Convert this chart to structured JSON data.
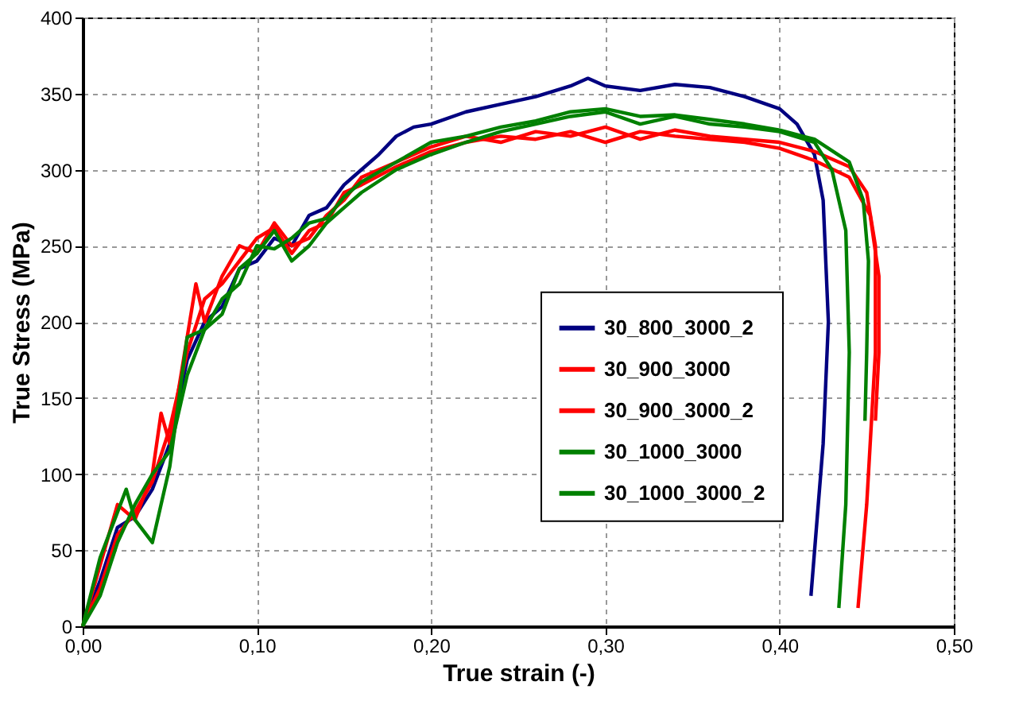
{
  "chart_data": {
    "type": "line",
    "xlabel": "True strain (-)",
    "ylabel": "True Stress (MPa)",
    "xlim": [
      0,
      0.5
    ],
    "xticks": [
      {
        "value": 0,
        "label": "0,00"
      },
      {
        "value": 0.1,
        "label": "0,10"
      },
      {
        "value": 0.2,
        "label": "0,20"
      },
      {
        "value": 0.3,
        "label": "0,30"
      },
      {
        "value": 0.4,
        "label": "0,40"
      },
      {
        "value": 0.5,
        "label": "0,50"
      }
    ],
    "ylim": [
      0,
      400
    ],
    "yticks": [
      0,
      50,
      100,
      150,
      200,
      250,
      300,
      350,
      400
    ],
    "grid": true,
    "legend": "right",
    "marker": "none",
    "line_style": "solid",
    "series": [
      {
        "name": "30_800_3000_2",
        "color": "#000080",
        "x": [
          0,
          0.01,
          0.02,
          0.03,
          0.04,
          0.05,
          0.06,
          0.07,
          0.08,
          0.09,
          0.1,
          0.11,
          0.12,
          0.13,
          0.14,
          0.15,
          0.16,
          0.17,
          0.18,
          0.19,
          0.2,
          0.22,
          0.24,
          0.26,
          0.28,
          0.29,
          0.3,
          0.32,
          0.34,
          0.36,
          0.38,
          0.4,
          0.41,
          0.42,
          0.425,
          0.428,
          0.425,
          0.418
        ],
        "values": [
          0,
          30,
          65,
          72,
          90,
          120,
          175,
          200,
          210,
          235,
          240,
          255,
          250,
          270,
          275,
          290,
          300,
          310,
          322,
          328,
          330,
          338,
          343,
          348,
          355,
          360,
          355,
          352,
          356,
          354,
          348,
          340,
          330,
          310,
          280,
          200,
          120,
          20
        ]
      },
      {
        "name": "30_900_3000",
        "color": "#ff0000",
        "x": [
          0,
          0.01,
          0.02,
          0.03,
          0.04,
          0.045,
          0.05,
          0.06,
          0.065,
          0.07,
          0.08,
          0.09,
          0.1,
          0.11,
          0.12,
          0.13,
          0.14,
          0.15,
          0.16,
          0.18,
          0.2,
          0.22,
          0.24,
          0.26,
          0.28,
          0.3,
          0.32,
          0.34,
          0.36,
          0.38,
          0.4,
          0.42,
          0.44,
          0.45,
          0.455,
          0.455,
          0.45,
          0.445
        ],
        "values": [
          0,
          40,
          80,
          70,
          100,
          140,
          120,
          190,
          225,
          200,
          230,
          250,
          245,
          265,
          250,
          255,
          270,
          280,
          295,
          305,
          315,
          322,
          318,
          325,
          322,
          328,
          320,
          326,
          322,
          320,
          318,
          312,
          302,
          285,
          250,
          180,
          80,
          12
        ]
      },
      {
        "name": "30_900_3000_2",
        "color": "#ff0000",
        "x": [
          0,
          0.01,
          0.02,
          0.03,
          0.04,
          0.05,
          0.06,
          0.07,
          0.08,
          0.09,
          0.1,
          0.11,
          0.12,
          0.13,
          0.14,
          0.15,
          0.16,
          0.18,
          0.2,
          0.22,
          0.24,
          0.26,
          0.28,
          0.3,
          0.32,
          0.34,
          0.36,
          0.38,
          0.4,
          0.42,
          0.44,
          0.452,
          0.457,
          0.457,
          0.455
        ],
        "values": [
          0,
          25,
          60,
          75,
          95,
          130,
          180,
          215,
          225,
          240,
          255,
          262,
          245,
          260,
          265,
          285,
          290,
          302,
          312,
          318,
          322,
          320,
          325,
          318,
          325,
          322,
          320,
          318,
          314,
          306,
          295,
          270,
          230,
          180,
          135
        ]
      },
      {
        "name": "30_1000_3000",
        "color": "#008000",
        "x": [
          0,
          0.01,
          0.02,
          0.025,
          0.03,
          0.04,
          0.045,
          0.05,
          0.06,
          0.07,
          0.08,
          0.09,
          0.1,
          0.11,
          0.12,
          0.13,
          0.14,
          0.15,
          0.16,
          0.18,
          0.2,
          0.22,
          0.24,
          0.26,
          0.28,
          0.3,
          0.32,
          0.34,
          0.36,
          0.38,
          0.4,
          0.42,
          0.43,
          0.438,
          0.44,
          0.438,
          0.434
        ],
        "values": [
          0,
          45,
          75,
          90,
          70,
          55,
          80,
          105,
          190,
          195,
          205,
          235,
          245,
          260,
          240,
          250,
          265,
          275,
          285,
          300,
          310,
          318,
          325,
          330,
          335,
          338,
          330,
          335,
          330,
          328,
          325,
          318,
          300,
          260,
          180,
          80,
          12
        ]
      },
      {
        "name": "30_1000_3000_2",
        "color": "#008000",
        "x": [
          0,
          0.01,
          0.02,
          0.03,
          0.04,
          0.05,
          0.06,
          0.07,
          0.08,
          0.09,
          0.1,
          0.11,
          0.12,
          0.13,
          0.14,
          0.15,
          0.16,
          0.18,
          0.2,
          0.22,
          0.24,
          0.26,
          0.28,
          0.3,
          0.32,
          0.34,
          0.36,
          0.38,
          0.4,
          0.42,
          0.44,
          0.448,
          0.451,
          0.45,
          0.449
        ],
        "values": [
          0,
          20,
          55,
          80,
          100,
          115,
          165,
          195,
          215,
          225,
          250,
          248,
          255,
          265,
          268,
          282,
          292,
          305,
          318,
          322,
          328,
          332,
          338,
          340,
          335,
          336,
          333,
          330,
          326,
          320,
          305,
          280,
          240,
          180,
          135
        ]
      }
    ]
  }
}
